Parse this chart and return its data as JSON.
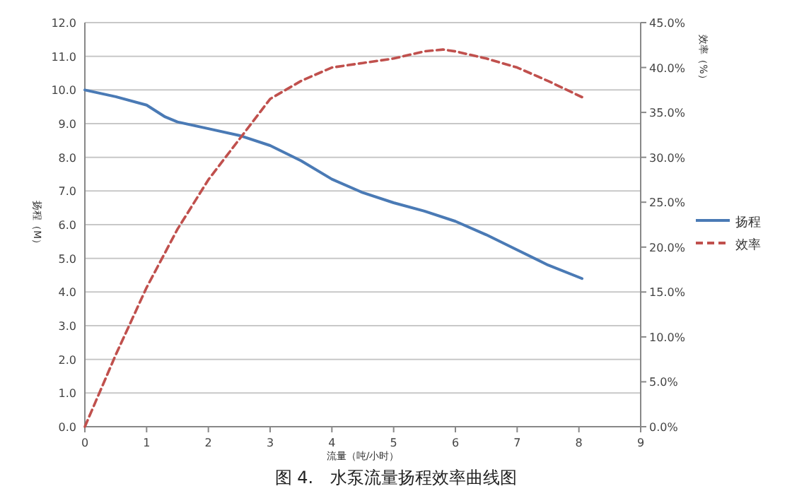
{
  "chart_data": {
    "type": "line",
    "xlabel": "流量（吨/小时）",
    "ylabel": "扬程（M）",
    "y2label": "效率（%）",
    "annotations": [
      "图 4.　水泵流量扬程效率曲线图"
    ],
    "xlim": [
      0,
      9
    ],
    "xticks": [
      0,
      1,
      2,
      3,
      4,
      5,
      6,
      7,
      8,
      9
    ],
    "ylim": [
      0,
      12
    ],
    "yticks": [
      {
        "value": 0,
        "label": "0.0"
      },
      {
        "value": 1,
        "label": "1.0"
      },
      {
        "value": 2,
        "label": "2.0"
      },
      {
        "value": 3,
        "label": "3.0"
      },
      {
        "value": 4,
        "label": "4.0"
      },
      {
        "value": 5,
        "label": "5.0"
      },
      {
        "value": 6,
        "label": "6.0"
      },
      {
        "value": 7,
        "label": "7.0"
      },
      {
        "value": 8,
        "label": "8.0"
      },
      {
        "value": 9,
        "label": "9.0"
      },
      {
        "value": 10,
        "label": "10.0"
      },
      {
        "value": 11,
        "label": "11.0"
      },
      {
        "value": 12,
        "label": "12.0"
      }
    ],
    "y2lim": [
      0,
      45
    ],
    "y2ticks": [
      {
        "value": 0,
        "label": "0.0%"
      },
      {
        "value": 5,
        "label": "5.0%"
      },
      {
        "value": 10,
        "label": "10.0%"
      },
      {
        "value": 15,
        "label": "15.0%"
      },
      {
        "value": 20,
        "label": "20.0%"
      },
      {
        "value": 25,
        "label": "25.0%"
      },
      {
        "value": 30,
        "label": "30.0%"
      },
      {
        "value": 35,
        "label": "35.0%"
      },
      {
        "value": 40,
        "label": "40.0%"
      },
      {
        "value": 45,
        "label": "45.0%"
      }
    ],
    "grid": "y",
    "legend": "right",
    "series": [
      {
        "name": "扬程",
        "color": "#4a7ab5",
        "line_style": "solid",
        "x": [
          0,
          0.5,
          1,
          1.3,
          1.5,
          2,
          2.5,
          3,
          3.5,
          4,
          4.5,
          5,
          5.5,
          6,
          6.5,
          7,
          7.5,
          8.05
        ],
        "values": [
          10.0,
          9.8,
          9.55,
          9.2,
          9.05,
          8.85,
          8.65,
          8.35,
          7.9,
          7.35,
          6.95,
          6.65,
          6.4,
          6.1,
          5.7,
          5.25,
          4.8,
          4.4
        ]
      },
      {
        "name": "效率",
        "color": "#c0504d",
        "line_style": "dashed",
        "axis": "y2",
        "x": [
          0,
          0.5,
          1,
          1.5,
          2,
          2.5,
          3,
          3.5,
          4,
          4.5,
          5,
          5.5,
          5.8,
          6,
          6.5,
          7,
          7.5,
          8.05
        ],
        "values": [
          0,
          8,
          15.5,
          22,
          27.5,
          32,
          36.5,
          38.5,
          40,
          40.5,
          41,
          41.8,
          42,
          41.8,
          41,
          40,
          38.5,
          36.7
        ]
      }
    ]
  }
}
